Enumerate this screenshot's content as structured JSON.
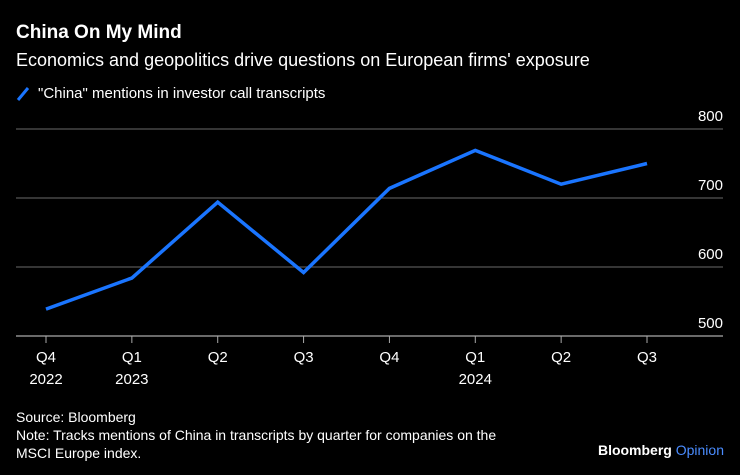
{
  "title": "China On My Mind",
  "subtitle": "Economics and geopolitics drive questions on European firms' exposure",
  "source": "Source: Bloomberg",
  "note1": "Note: Tracks mentions of China in transcripts by quarter for companies on the",
  "note2": "MSCI Europe index.",
  "brand": {
    "name": "Bloomberg",
    "suffix": "Opinion"
  },
  "colors": {
    "line": "#1a75ff",
    "grid": "#555555"
  },
  "chart_data": {
    "type": "line",
    "categories": [
      [
        "Q4",
        "2022"
      ],
      [
        "Q1",
        "2023"
      ],
      [
        "Q2",
        ""
      ],
      [
        "Q3",
        ""
      ],
      [
        "Q4",
        ""
      ],
      [
        "Q1",
        "2024"
      ],
      [
        "Q2",
        ""
      ],
      [
        "Q3",
        ""
      ]
    ],
    "series": [
      {
        "name": "\"China\" mentions in investor call transcripts",
        "values": [
          539,
          584,
          694,
          592,
          714,
          769,
          720,
          750
        ]
      }
    ],
    "yticks": [
      500,
      600,
      700,
      800
    ],
    "ylim": [
      500,
      800
    ],
    "legend": "top-left",
    "grid": true
  }
}
